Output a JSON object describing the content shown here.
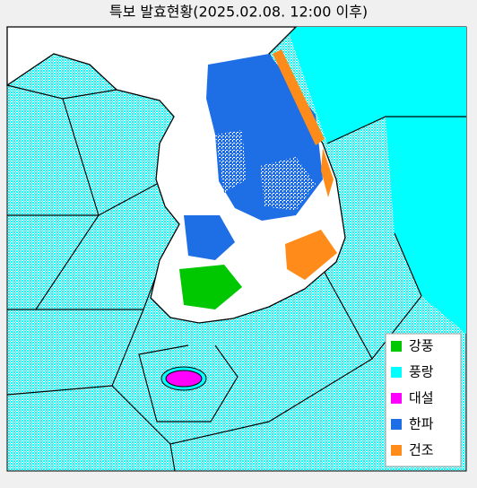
{
  "title": "특보 발효현황(2025.02.08. 12:00 이후)",
  "legend": [
    {
      "label": "강풍",
      "color": "#00c800"
    },
    {
      "label": "풍랑",
      "color": "#00ffff"
    },
    {
      "label": "대설",
      "color": "#ff00ff"
    },
    {
      "label": "한파",
      "color": "#1e6ee6"
    },
    {
      "label": "건조",
      "color": "#ff8c1a"
    }
  ]
}
